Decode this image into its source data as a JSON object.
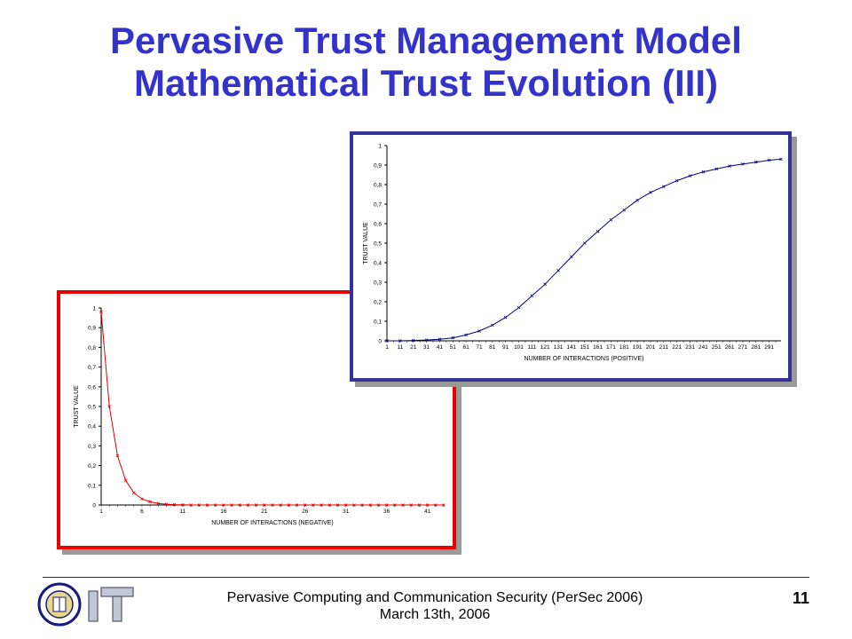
{
  "slide": {
    "title_line1": "Pervasive Trust Management Model",
    "title_line2": "Mathematical Trust Evolution (III)",
    "footer_line1": "Pervasive Computing and Communication Security  (PerSec 2006)",
    "footer_line2": "March 13th, 2006",
    "page_number": "11"
  },
  "chart_data": [
    {
      "type": "line",
      "xlabel": "NUMBER OF INTERACTIONS (NEGATIVE)",
      "ylabel": "TRUST VALUE",
      "ylim": [
        0,
        1
      ],
      "xlim": [
        1,
        43
      ],
      "y_ticks": [
        "0",
        "0,1",
        "0,2",
        "0,3",
        "0,4",
        "0,5",
        "0,6",
        "0,7",
        "0,8",
        "0,9",
        "1"
      ],
      "x_ticks": [
        1,
        6,
        11,
        16,
        21,
        26,
        31,
        36,
        41
      ],
      "grid": false,
      "color": "#e00000",
      "x": [
        1,
        2,
        3,
        4,
        5,
        6,
        7,
        8,
        9,
        10,
        11,
        12,
        13,
        14,
        15,
        16,
        17,
        18,
        19,
        20,
        21,
        22,
        23,
        24,
        25,
        26,
        27,
        28,
        29,
        30,
        31,
        32,
        33,
        34,
        35,
        36,
        37,
        38,
        39,
        40,
        41,
        42,
        43
      ],
      "values": [
        0.98,
        0.5,
        0.25,
        0.125,
        0.062,
        0.031,
        0.016,
        0.008,
        0.004,
        0.002,
        0.001,
        0,
        0,
        0,
        0,
        0,
        0,
        0,
        0,
        0,
        0,
        0,
        0,
        0,
        0,
        0,
        0,
        0,
        0,
        0,
        0,
        0,
        0,
        0,
        0,
        0,
        0,
        0,
        0,
        0,
        0,
        0,
        0
      ]
    },
    {
      "type": "line",
      "xlabel": "NUMBER OF INTERACTIONS (POSITIVE)",
      "ylabel": "TRUST VALUE",
      "ylim": [
        0,
        1
      ],
      "xlim": [
        1,
        300
      ],
      "y_ticks": [
        "0",
        "0,1",
        "0,2",
        "0,3",
        "0,4",
        "0,5",
        "0,6",
        "0,7",
        "0,8",
        "0,9",
        "1"
      ],
      "x_ticks": [
        1,
        11,
        21,
        31,
        41,
        51,
        61,
        71,
        81,
        91,
        101,
        111,
        121,
        131,
        141,
        151,
        161,
        171,
        181,
        191,
        201,
        211,
        221,
        231,
        241,
        251,
        261,
        271,
        281,
        291
      ],
      "grid": false,
      "color": "#000080",
      "x": [
        1,
        11,
        21,
        31,
        41,
        51,
        61,
        71,
        81,
        91,
        101,
        111,
        121,
        131,
        141,
        151,
        161,
        171,
        181,
        191,
        201,
        211,
        221,
        231,
        241,
        251,
        261,
        271,
        281,
        291,
        300
      ],
      "values": [
        0,
        0,
        0.002,
        0.004,
        0.008,
        0.015,
        0.03,
        0.05,
        0.08,
        0.12,
        0.17,
        0.23,
        0.29,
        0.36,
        0.43,
        0.5,
        0.56,
        0.62,
        0.67,
        0.72,
        0.76,
        0.79,
        0.82,
        0.845,
        0.865,
        0.88,
        0.895,
        0.905,
        0.915,
        0.925,
        0.93
      ]
    }
  ]
}
